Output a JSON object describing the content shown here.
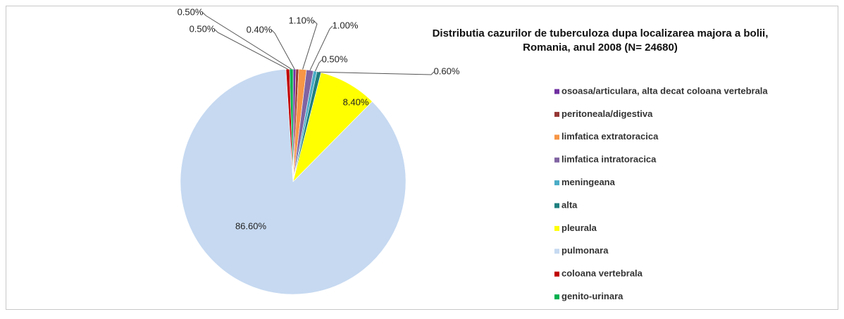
{
  "chart_data": {
    "type": "pie",
    "title": [
      "Distributia  cazurilor de tuberculoza dupa localizarea majora a bolii,",
      "Romania, anul 2008 (N= 24680)"
    ],
    "categories": [
      "osoasa/articulara, alta decat coloana vertebrala",
      "peritoneala/digestiva",
      "limfatica extratoracica",
      "limfatica intratoracica",
      "meningeana",
      "alta",
      "pleurala",
      "pulmonara",
      "coloana vertebrala",
      "genito-urinara"
    ],
    "values": [
      0.4,
      0.4,
      1.1,
      1.0,
      0.5,
      0.6,
      8.4,
      86.6,
      0.5,
      0.5
    ],
    "value_labels": [
      "0.40%",
      null,
      "1.10%",
      "1.00%",
      "0.50%",
      "0.60%",
      "8.40%",
      "86.60%",
      "0.50%",
      "0.50%"
    ],
    "colors": [
      "#7030a0",
      "#953735",
      "#f79646",
      "#8064a2",
      "#4bacc6",
      "#1f7f7f",
      "#ffff00",
      "#c6d9f1",
      "#c00000",
      "#00b050"
    ],
    "legend": "right"
  }
}
